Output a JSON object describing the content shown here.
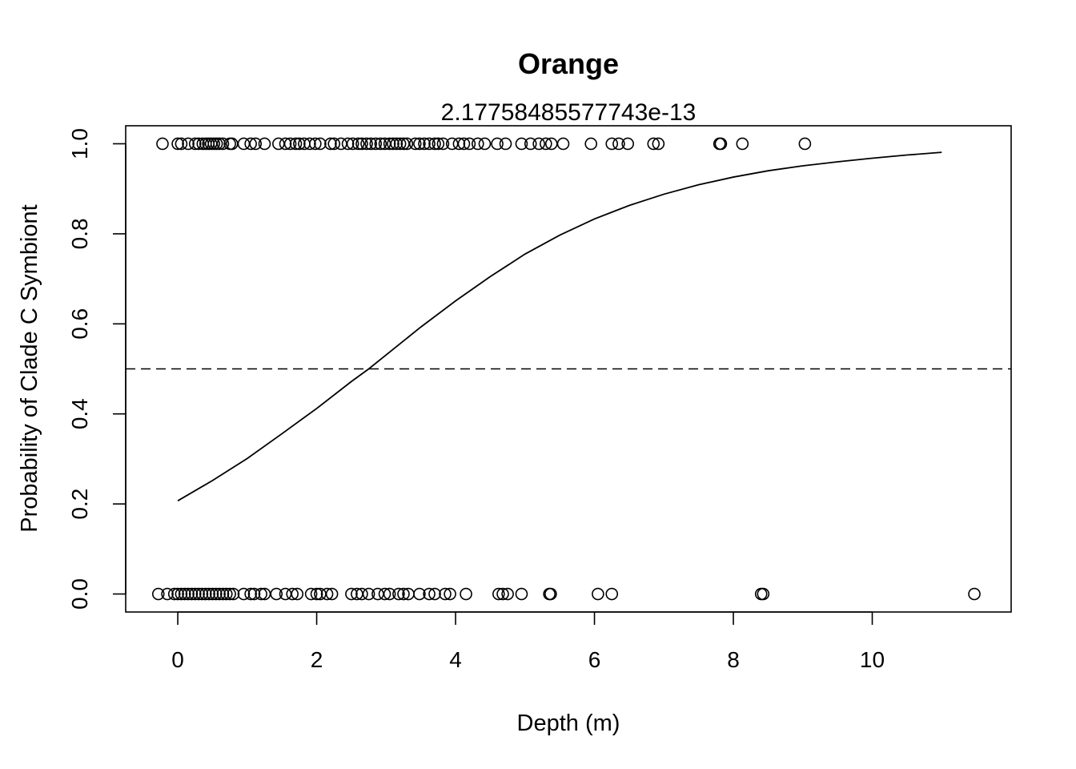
{
  "chart_data": {
    "type": "scatter",
    "title": "Orange",
    "subtitle": "2.17758485577743e-13",
    "xlabel": "Depth (m)",
    "ylabel": "Probability of Clade C Symbiont",
    "xlim": [
      -0.75,
      12.0
    ],
    "ylim": [
      -0.04,
      1.04
    ],
    "x_ticks": [
      {
        "value": 0,
        "label": "0"
      },
      {
        "value": 2,
        "label": "2"
      },
      {
        "value": 4,
        "label": "4"
      },
      {
        "value": 6,
        "label": "6"
      },
      {
        "value": 8,
        "label": "8"
      },
      {
        "value": 10,
        "label": "10"
      }
    ],
    "y_ticks": [
      {
        "value": 0.0,
        "label": "0.0"
      },
      {
        "value": 0.2,
        "label": "0.2"
      },
      {
        "value": 0.4,
        "label": "0.4"
      },
      {
        "value": 0.6,
        "label": "0.6"
      },
      {
        "value": 0.8,
        "label": "0.8"
      },
      {
        "value": 1.0,
        "label": "1.0"
      }
    ],
    "grid": false,
    "reference_line": {
      "y": 0.5,
      "style": "dashed"
    },
    "fitted_curve": {
      "description": "logistic fit",
      "x": [
        0,
        0.5,
        1,
        1.5,
        2,
        2.5,
        2.75,
        3,
        3.5,
        4,
        4.5,
        5,
        5.5,
        6,
        6.5,
        7,
        7.5,
        8,
        8.5,
        9,
        9.5,
        10,
        10.5,
        11
      ],
      "y": [
        0.207,
        0.252,
        0.301,
        0.356,
        0.412,
        0.472,
        0.5,
        0.531,
        0.593,
        0.651,
        0.705,
        0.755,
        0.797,
        0.833,
        0.863,
        0.888,
        0.909,
        0.926,
        0.94,
        0.951,
        0.96,
        0.968,
        0.975,
        0.981
      ]
    },
    "series": [
      {
        "y": 1,
        "x": [
          -0.22,
          0.0,
          0.05,
          0.15,
          0.25,
          0.3,
          0.36,
          0.4,
          0.44,
          0.48,
          0.52,
          0.56,
          0.6,
          0.65,
          0.75,
          0.78,
          0.95,
          1.05,
          1.12,
          1.25,
          1.45,
          1.55,
          1.62,
          1.7,
          1.75,
          1.82,
          1.9,
          1.98,
          2.05,
          2.2,
          2.25,
          2.35,
          2.45,
          2.52,
          2.6,
          2.65,
          2.72,
          2.78,
          2.85,
          2.92,
          2.98,
          3.05,
          3.1,
          3.15,
          3.2,
          3.25,
          3.3,
          3.42,
          3.48,
          3.55,
          3.62,
          3.7,
          3.75,
          3.82,
          3.95,
          4.05,
          4.12,
          4.2,
          4.32,
          4.42,
          4.6,
          4.72,
          4.95,
          5.08,
          5.2,
          5.3,
          5.38,
          5.55,
          5.95,
          6.25,
          6.35,
          6.48,
          6.85,
          6.92,
          7.8,
          7.82,
          8.13,
          9.03
        ]
      },
      {
        "y": 0,
        "x": [
          -0.28,
          -0.15,
          -0.05,
          0.0,
          0.05,
          0.1,
          0.15,
          0.2,
          0.25,
          0.3,
          0.35,
          0.4,
          0.45,
          0.5,
          0.55,
          0.6,
          0.65,
          0.7,
          0.75,
          0.8,
          0.95,
          1.05,
          1.1,
          1.2,
          1.25,
          1.42,
          1.55,
          1.65,
          1.72,
          1.92,
          2.0,
          2.05,
          2.15,
          2.22,
          2.5,
          2.58,
          2.65,
          2.75,
          2.88,
          2.98,
          3.05,
          3.18,
          3.25,
          3.32,
          3.48,
          3.62,
          3.7,
          3.85,
          3.92,
          4.15,
          4.62,
          4.68,
          4.75,
          4.95,
          5.35,
          5.37,
          6.05,
          6.25,
          8.4,
          8.43,
          11.47
        ]
      }
    ]
  }
}
